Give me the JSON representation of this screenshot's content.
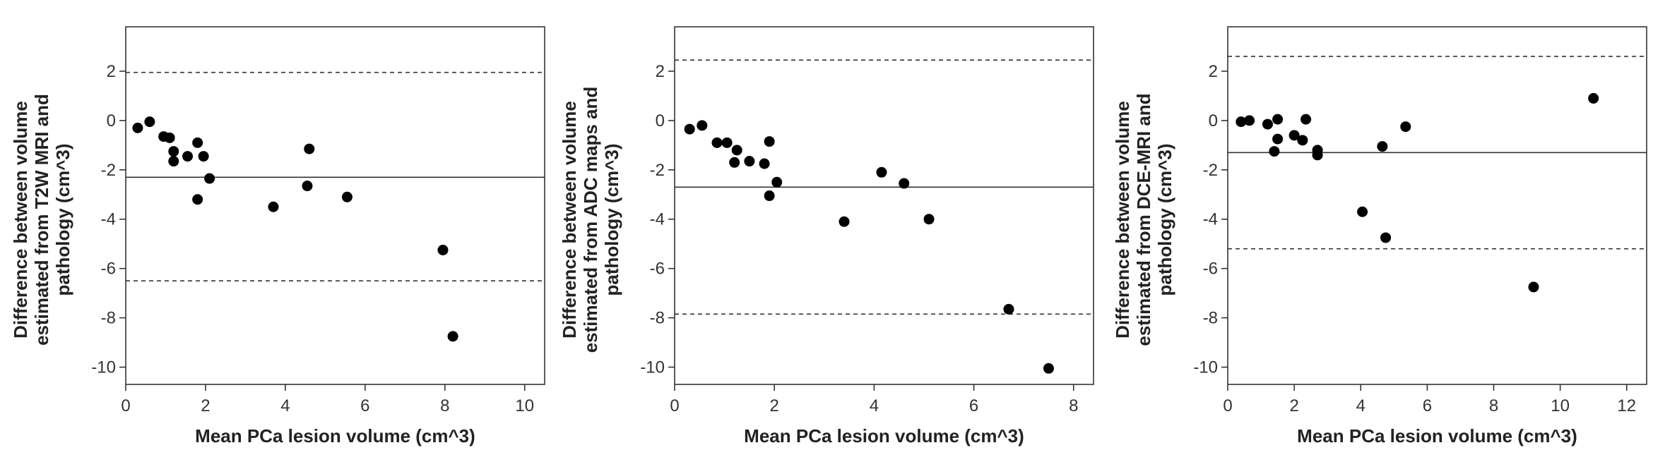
{
  "chart_data": [
    {
      "type": "scatter",
      "title": "",
      "xlabel": "Mean PCa lesion volume (cm^3)",
      "ylabel_lines": [
        "Difference between volume",
        "estimated from T2W MRI and",
        "pathology  (cm^3)"
      ],
      "xlim": [
        0,
        10.5
      ],
      "ylim": [
        -10.7,
        3.8
      ],
      "xticks": [
        0,
        2,
        4,
        6,
        8,
        10
      ],
      "yticks": [
        2,
        0,
        -2,
        -4,
        -6,
        -8,
        -10
      ],
      "mean_difference": -2.3,
      "limits_of_agreement": [
        1.95,
        -6.5
      ],
      "points": [
        [
          0.3,
          -0.3
        ],
        [
          0.6,
          -0.05
        ],
        [
          0.95,
          -0.65
        ],
        [
          1.1,
          -0.7
        ],
        [
          1.2,
          -1.25
        ],
        [
          1.2,
          -1.65
        ],
        [
          1.55,
          -1.45
        ],
        [
          1.8,
          -0.9
        ],
        [
          1.95,
          -1.45
        ],
        [
          1.8,
          -3.2
        ],
        [
          2.1,
          -2.35
        ],
        [
          3.7,
          -3.5
        ],
        [
          4.55,
          -2.65
        ],
        [
          4.6,
          -1.15
        ],
        [
          5.55,
          -3.1
        ],
        [
          7.95,
          -5.25
        ],
        [
          8.2,
          -8.75
        ]
      ]
    },
    {
      "type": "scatter",
      "title": "",
      "xlabel": "Mean PCa lesion volume (cm^3)",
      "ylabel_lines": [
        "Difference between volume",
        "estimated from ADC maps and",
        "pathology  (cm^3)"
      ],
      "xlim": [
        0,
        8.4
      ],
      "ylim": [
        -10.7,
        3.8
      ],
      "xticks": [
        0,
        2,
        4,
        6,
        8
      ],
      "yticks": [
        2,
        0,
        -2,
        -4,
        -6,
        -8,
        -10
      ],
      "mean_difference": -2.7,
      "limits_of_agreement": [
        2.45,
        -7.85
      ],
      "points": [
        [
          0.3,
          -0.35
        ],
        [
          0.55,
          -0.2
        ],
        [
          0.85,
          -0.9
        ],
        [
          1.05,
          -0.9
        ],
        [
          1.2,
          -1.7
        ],
        [
          1.25,
          -1.2
        ],
        [
          1.5,
          -1.65
        ],
        [
          1.8,
          -1.75
        ],
        [
          1.9,
          -0.85
        ],
        [
          1.9,
          -3.05
        ],
        [
          2.05,
          -2.5
        ],
        [
          3.4,
          -4.1
        ],
        [
          4.15,
          -2.1
        ],
        [
          4.6,
          -2.55
        ],
        [
          5.1,
          -4.0
        ],
        [
          6.7,
          -7.65
        ],
        [
          7.5,
          -10.05
        ]
      ]
    },
    {
      "type": "scatter",
      "title": "",
      "xlabel": "Mean PCa lesion volume (cm^3)",
      "ylabel_lines": [
        "Difference between volume",
        "estimated from DCE-MRI and",
        "pathology  (cm^3)"
      ],
      "xlim": [
        0,
        12.6
      ],
      "ylim": [
        -10.7,
        3.8
      ],
      "xticks": [
        0,
        2,
        4,
        6,
        8,
        10,
        12
      ],
      "yticks": [
        2,
        0,
        -2,
        -4,
        -6,
        -8,
        -10
      ],
      "mean_difference": -1.3,
      "limits_of_agreement": [
        2.6,
        -5.2
      ],
      "points": [
        [
          0.4,
          -0.05
        ],
        [
          0.65,
          0.0
        ],
        [
          1.2,
          -0.15
        ],
        [
          1.4,
          -1.25
        ],
        [
          1.5,
          -0.75
        ],
        [
          1.5,
          0.05
        ],
        [
          2.0,
          -0.6
        ],
        [
          2.25,
          -0.8
        ],
        [
          2.35,
          0.05
        ],
        [
          2.7,
          -1.2
        ],
        [
          2.7,
          -1.4
        ],
        [
          4.05,
          -3.7
        ],
        [
          4.65,
          -1.05
        ],
        [
          4.75,
          -4.75
        ],
        [
          5.35,
          -0.25
        ],
        [
          9.2,
          -6.75
        ],
        [
          11.0,
          0.9
        ]
      ]
    }
  ]
}
